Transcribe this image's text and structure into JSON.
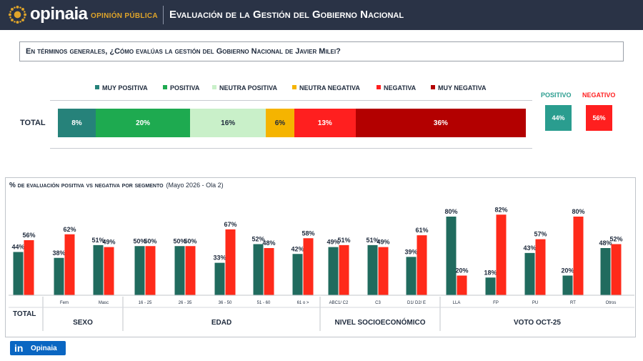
{
  "header": {
    "brand": "opinaia",
    "brand_sub": "OPINIÓN PÚBLICA",
    "title": "Evaluación de la Gestión del Gobierno Nacional"
  },
  "question": "En términos generales, ¿Cómo evalúas la gestión del Gobierno Nacional de Javier Milei?",
  "legend": [
    {
      "label": "MUY POSITIVA",
      "color": "#26827a"
    },
    {
      "label": "POSITIVA",
      "color": "#1eaa50"
    },
    {
      "label": "NEUTRA POSITIVA",
      "color": "#c9f0c9"
    },
    {
      "label": "NEUTRA NEGATIVA",
      "color": "#f5b400"
    },
    {
      "label": "NEGATIVA",
      "color": "#ff1f1f"
    },
    {
      "label": "MUY NEGATIVA",
      "color": "#b30000"
    }
  ],
  "total_label": "TOTAL",
  "summary": {
    "positive": {
      "label": "POSITIVO",
      "value": "44%",
      "color": "#2a9d8f"
    },
    "negative": {
      "label": "NEGATIVO",
      "value": "56%",
      "color": "#ff1f1f"
    }
  },
  "segment_panel": {
    "title_main": "% de evaluación positiva vs negativa por segmento",
    "title_sub": "(Mayo 2026 - Ola 2)",
    "groups": [
      {
        "label": "TOTAL"
      },
      {
        "label": "SEXO"
      },
      {
        "label": "EDAD"
      },
      {
        "label": "NIVEL SOCIOECONÓMICO"
      },
      {
        "label": "VOTO OCT-25"
      }
    ]
  },
  "footer": {
    "linkedin_label": "Opinaia",
    "linkedin_icon": "in"
  },
  "chart_data": [
    {
      "type": "bar",
      "orientation": "horizontal-stacked",
      "categories": [
        "TOTAL"
      ],
      "series": [
        {
          "name": "MUY POSITIVA",
          "values": [
            8
          ]
        },
        {
          "name": "POSITIVA",
          "values": [
            20
          ]
        },
        {
          "name": "NEUTRA POSITIVA",
          "values": [
            16
          ]
        },
        {
          "name": "NEUTRA NEGATIVA",
          "values": [
            6
          ]
        },
        {
          "name": "NEGATIVA",
          "values": [
            13
          ]
        },
        {
          "name": "MUY NEGATIVA",
          "values": [
            36
          ]
        }
      ],
      "colors": [
        "#26827a",
        "#1eaa50",
        "#c9f0c9",
        "#f5b400",
        "#ff1f1f",
        "#b30000"
      ],
      "text_colors": [
        "#ffffff",
        "#ffffff",
        "#1e2a3c",
        "#1e2a3c",
        "#ffffff",
        "#ffffff"
      ]
    },
    {
      "type": "bar",
      "title": "% de evaluación positiva vs negativa por segmento",
      "categories": [
        "",
        "Fem",
        "Masc",
        "16 - 25",
        "26 - 35",
        "36 - 50",
        "51 - 60",
        "61 o >",
        "ABC1/ C2",
        "C3",
        "D1/ D2/ E",
        "LLA",
        "FP",
        "PU",
        "RT",
        "Otros"
      ],
      "groups": [
        {
          "label": "TOTAL",
          "categories": [
            ""
          ]
        },
        {
          "label": "SEXO",
          "categories": [
            "Fem",
            "Masc"
          ]
        },
        {
          "label": "EDAD",
          "categories": [
            "16 - 25",
            "26 - 35",
            "36 - 50",
            "51 - 60",
            "61 o >"
          ]
        },
        {
          "label": "NIVEL SOCIOECONÓMICO",
          "categories": [
            "ABC1/ C2",
            "C3",
            "D1/ D2/ E"
          ]
        },
        {
          "label": "VOTO OCT-25",
          "categories": [
            "LLA",
            "FP",
            "PU",
            "RT",
            "Otros"
          ]
        }
      ],
      "series": [
        {
          "values": [
            44,
            38,
            51,
            50,
            50,
            33,
            52,
            42,
            49,
            51,
            39,
            80,
            18,
            43,
            20,
            48
          ],
          "color": "#206b5e"
        },
        {
          "values": [
            56,
            62,
            49,
            50,
            50,
            67,
            48,
            58,
            51,
            49,
            61,
            20,
            82,
            57,
            80,
            52
          ],
          "color": "#ff2a1a"
        }
      ],
      "ylim": [
        0,
        85
      ],
      "grid": false
    }
  ]
}
